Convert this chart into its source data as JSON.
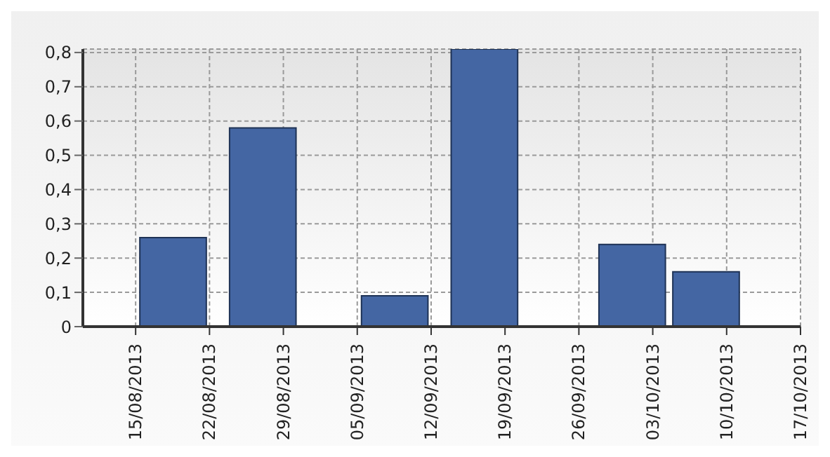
{
  "chart_data": {
    "type": "bar",
    "x": [
      "2013-08-18T12:00",
      "2013-08-27",
      "2013-09-08T12:00",
      "2013-09-17",
      "2013-10-01",
      "2013-10-08"
    ],
    "values": [
      0.26,
      0.58,
      0.09,
      0.81,
      0.24,
      0.16
    ],
    "color": "#4466a3",
    "xlim": [
      "2013-08-10",
      "2013-10-17"
    ],
    "xticks": [
      {
        "value": "2013-08-15",
        "label": "15/08/2013"
      },
      {
        "value": "2013-08-22",
        "label": "22/08/2013"
      },
      {
        "value": "2013-08-29",
        "label": "29/08/2013"
      },
      {
        "value": "2013-09-05",
        "label": "05/09/2013"
      },
      {
        "value": "2013-09-12",
        "label": "12/09/2013"
      },
      {
        "value": "2013-09-19",
        "label": "19/09/2013"
      },
      {
        "value": "2013-09-26",
        "label": "26/09/2013"
      },
      {
        "value": "2013-10-03",
        "label": "03/10/2013"
      },
      {
        "value": "2013-10-10",
        "label": "10/10/2013"
      },
      {
        "value": "2013-10-17",
        "label": "17/10/2013"
      }
    ],
    "ylim": [
      0,
      0.81
    ],
    "yticks": [
      0,
      {
        "value": 0.1,
        "label": "0,1"
      },
      {
        "value": 0.2,
        "label": "0,2"
      },
      {
        "value": 0.3,
        "label": "0,3"
      },
      {
        "value": 0.4,
        "label": "0,4"
      },
      {
        "value": 0.5,
        "label": "0,5"
      },
      {
        "value": 0.6,
        "label": "0,6"
      },
      {
        "value": 0.7,
        "label": "0,7"
      },
      {
        "value": 0.8,
        "label": "0,8"
      }
    ],
    "grid": true
  }
}
